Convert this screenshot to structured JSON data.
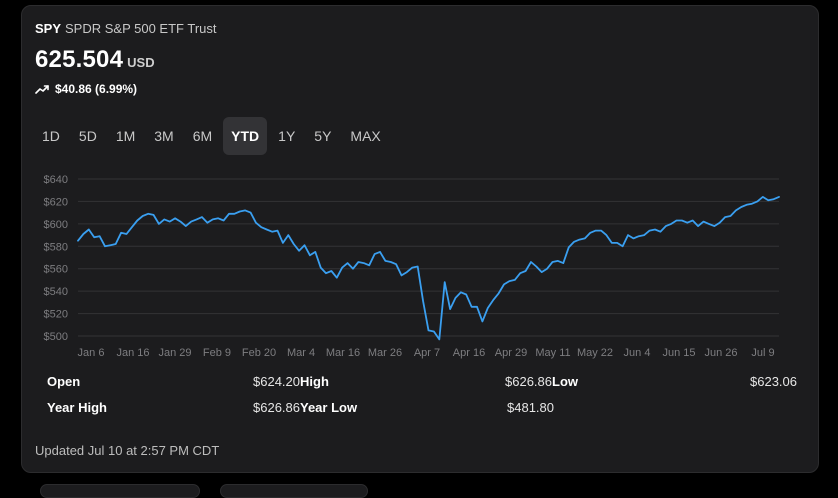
{
  "quote": {
    "symbol": "SPY",
    "name": "SPDR S&P 500 ETF Trust",
    "price": "625.504",
    "currency": "USD",
    "change": "$40.86 (6.99%)",
    "trend_icon": "trend-up-icon"
  },
  "ranges": [
    {
      "label": "1D",
      "active": false
    },
    {
      "label": "5D",
      "active": false
    },
    {
      "label": "1M",
      "active": false
    },
    {
      "label": "3M",
      "active": false
    },
    {
      "label": "6M",
      "active": false
    },
    {
      "label": "YTD",
      "active": true
    },
    {
      "label": "1Y",
      "active": false
    },
    {
      "label": "5Y",
      "active": false
    },
    {
      "label": "MAX",
      "active": false
    }
  ],
  "colors": {
    "line": "#3a9ff0",
    "background": "#1c1c1e",
    "grid": "#333336"
  },
  "chart_data": {
    "type": "line",
    "title": "",
    "xlabel": "",
    "ylabel": "",
    "ylim": [
      500,
      640
    ],
    "y_ticks": [
      640,
      620,
      600,
      580,
      560,
      540,
      520,
      500
    ],
    "y_tick_labels": [
      "$640",
      "$620",
      "$600",
      "$580",
      "$560",
      "$540",
      "$520",
      "$500"
    ],
    "x_tick_labels": [
      "Jan 6",
      "Jan 16",
      "Jan 29",
      "Feb 9",
      "Feb 20",
      "Mar 4",
      "Mar 16",
      "Mar 26",
      "Apr 7",
      "Apr 16",
      "Apr 29",
      "May 11",
      "May 22",
      "Jun 4",
      "Jun 15",
      "Jun 26",
      "Jul 9"
    ],
    "grid": true,
    "series": [
      {
        "values": [
          585,
          591,
          595,
          588,
          589,
          580,
          581,
          582,
          592,
          591,
          597,
          603,
          607,
          609,
          608,
          600,
          604,
          602,
          605,
          602,
          598,
          602,
          604,
          606,
          601,
          604,
          605,
          603,
          609,
          609,
          611,
          612,
          610,
          601,
          597,
          595,
          593,
          594,
          583,
          590,
          582,
          576,
          581,
          572,
          575,
          561,
          556,
          558,
          552,
          561,
          565,
          560,
          566,
          565,
          563,
          573,
          575,
          567,
          566,
          564,
          554,
          557,
          561,
          562,
          531,
          505,
          504,
          497,
          548,
          524,
          534,
          539,
          537,
          526,
          526,
          513,
          525,
          532,
          538,
          546,
          549,
          550,
          556,
          558,
          566,
          562,
          557,
          560,
          566,
          567,
          565,
          579,
          584,
          586,
          587,
          592,
          594,
          594,
          590,
          583,
          583,
          580,
          590,
          587,
          589,
          590,
          594,
          595,
          593,
          598,
          600,
          603,
          603,
          601,
          603,
          598,
          602,
          600,
          598,
          601,
          606,
          607,
          612,
          615,
          617,
          618,
          620,
          624,
          621,
          622,
          624
        ]
      }
    ]
  },
  "stats": {
    "open_label": "Open",
    "open": "$624.20",
    "high_label": "High",
    "high": "$626.86",
    "low_label": "Low",
    "low": "$623.06",
    "year_high_label": "Year High",
    "year_high": "$626.86",
    "year_low_label": "Year Low",
    "year_low": "$481.80"
  },
  "updated": "Updated Jul 10 at 2:57 PM CDT"
}
